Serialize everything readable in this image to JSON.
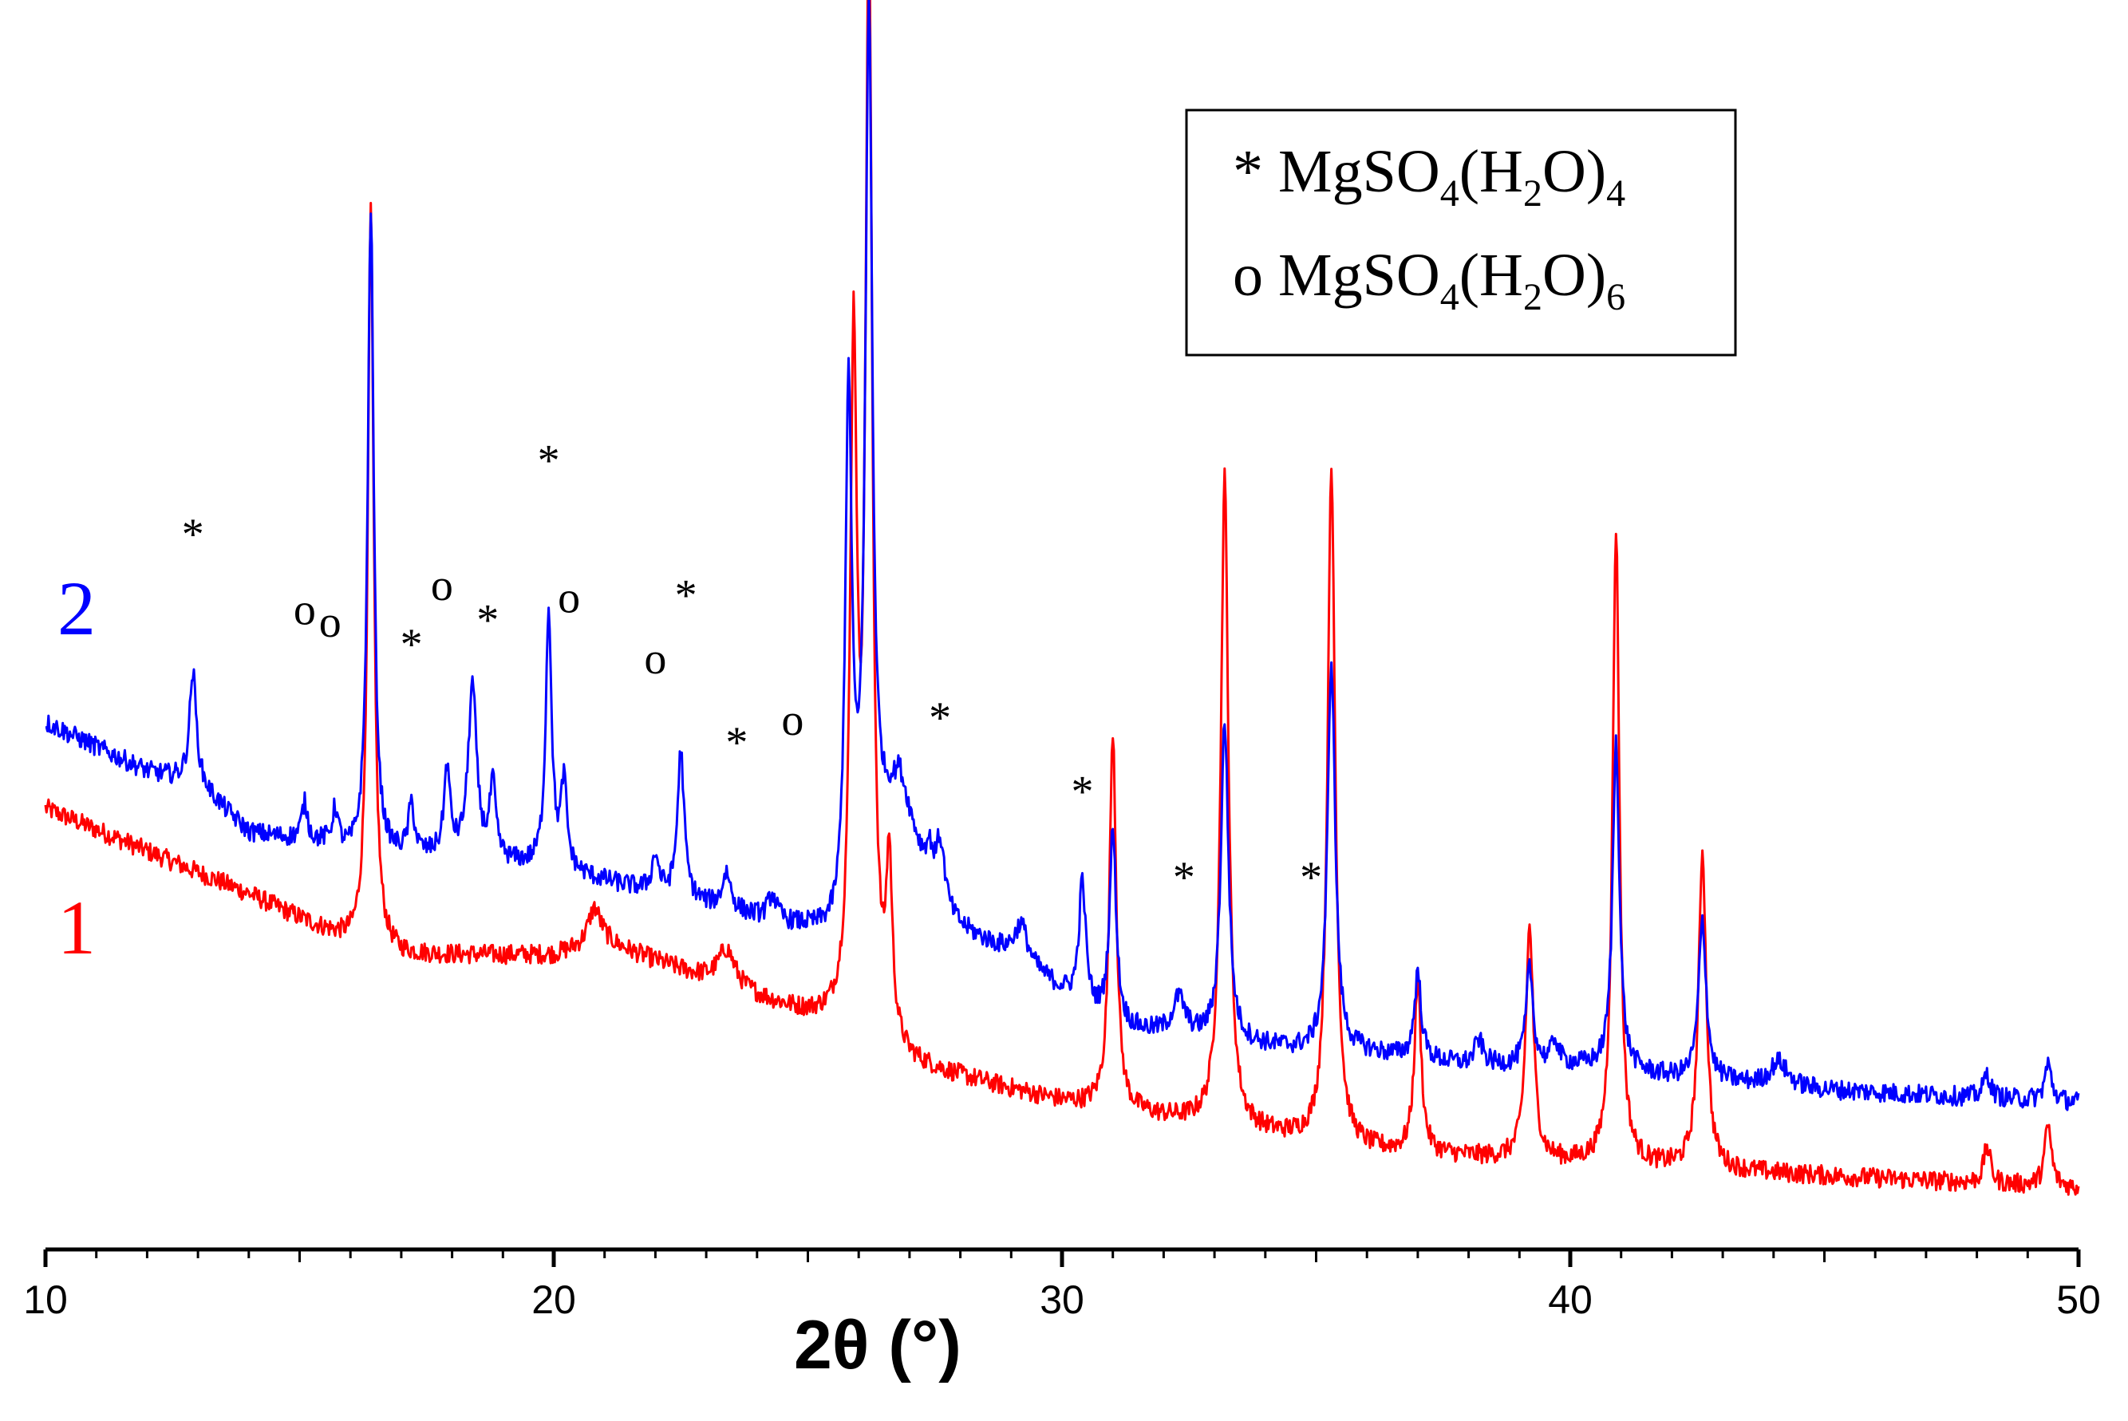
{
  "chart_data": {
    "type": "line",
    "xlabel": "2θ (°)",
    "xlim": [
      10,
      50
    ],
    "ylim": [
      0,
      100
    ],
    "xticks": [
      10,
      20,
      30,
      40,
      50
    ],
    "grid": false,
    "y_axis_shown": false,
    "series": [
      {
        "name": "1",
        "color": "#ff0000",
        "baseline": [
          [
            10,
            36
          ],
          [
            14,
            29
          ],
          [
            16,
            25
          ],
          [
            17,
            24
          ],
          [
            20,
            24
          ],
          [
            21,
            25
          ],
          [
            23,
            22
          ],
          [
            25,
            19
          ],
          [
            25.8,
            18
          ],
          [
            27,
            15
          ],
          [
            30,
            12
          ],
          [
            33,
            10
          ],
          [
            36,
            8
          ],
          [
            40,
            7
          ],
          [
            45,
            6
          ],
          [
            50,
            5
          ]
        ],
        "peaks": [
          [
            16.4,
            60,
            0.07
          ],
          [
            20.8,
            3,
            0.15
          ],
          [
            23.4,
            3,
            0.2
          ],
          [
            25.9,
            54,
            0.08
          ],
          [
            26.2,
            88,
            0.08
          ],
          [
            26.6,
            14,
            0.07
          ],
          [
            31.0,
            31,
            0.08
          ],
          [
            33.2,
            53,
            0.09
          ],
          [
            35.3,
            55,
            0.09
          ],
          [
            37.0,
            14,
            0.08
          ],
          [
            39.2,
            19,
            0.09
          ],
          [
            40.9,
            52,
            0.08
          ],
          [
            42.6,
            26,
            0.09
          ],
          [
            48.2,
            3,
            0.08
          ],
          [
            49.4,
            5,
            0.08
          ]
        ]
      },
      {
        "name": "2",
        "color": "#0000ff",
        "baseline": [
          [
            10,
            43
          ],
          [
            12,
            39
          ],
          [
            13,
            38
          ],
          [
            14,
            34
          ],
          [
            15.5,
            33
          ],
          [
            16,
            32
          ],
          [
            18,
            32
          ],
          [
            20,
            31
          ],
          [
            22,
            29
          ],
          [
            24,
            27
          ],
          [
            25,
            26
          ],
          [
            25.7,
            25
          ],
          [
            26.8,
            38
          ],
          [
            27.5,
            27
          ],
          [
            29,
            24
          ],
          [
            30,
            21
          ],
          [
            31,
            18
          ],
          [
            33,
            17
          ],
          [
            35,
            16
          ],
          [
            36,
            16
          ],
          [
            38,
            15
          ],
          [
            40,
            15
          ],
          [
            42,
            14
          ],
          [
            45,
            13
          ],
          [
            50,
            12
          ]
        ],
        "peaks": [
          [
            12.9,
            9,
            0.08
          ],
          [
            15.1,
            3,
            0.07
          ],
          [
            15.7,
            3,
            0.07
          ],
          [
            16.4,
            53,
            0.07
          ],
          [
            17.2,
            4,
            0.07
          ],
          [
            17.9,
            7,
            0.07
          ],
          [
            18.4,
            14,
            0.1
          ],
          [
            18.8,
            6,
            0.07
          ],
          [
            19.9,
            21,
            0.07
          ],
          [
            20.2,
            7,
            0.07
          ],
          [
            22.0,
            3,
            0.08
          ],
          [
            22.5,
            12,
            0.08
          ],
          [
            23.4,
            3,
            0.1
          ],
          [
            24.3,
            2,
            0.1
          ],
          [
            25.8,
            43,
            0.08
          ],
          [
            26.2,
            70,
            0.08
          ],
          [
            27.4,
            3,
            0.1
          ],
          [
            27.6,
            6,
            0.12
          ],
          [
            29.2,
            3,
            0.15
          ],
          [
            30.4,
            10,
            0.08
          ],
          [
            31.0,
            16,
            0.08
          ],
          [
            32.3,
            3,
            0.15
          ],
          [
            33.2,
            26,
            0.09
          ],
          [
            35.3,
            32,
            0.09
          ],
          [
            37.0,
            7,
            0.08
          ],
          [
            38.2,
            2,
            0.1
          ],
          [
            39.2,
            8,
            0.08
          ],
          [
            39.7,
            2,
            0.08
          ],
          [
            40.9,
            27,
            0.08
          ],
          [
            42.6,
            13,
            0.09
          ],
          [
            44.1,
            2,
            0.2
          ],
          [
            48.2,
            2,
            0.08
          ],
          [
            49.4,
            3,
            0.08
          ]
        ]
      }
    ],
    "annotations": {
      "series_labels": [
        {
          "text": "2",
          "color": "#0000ff"
        },
        {
          "text": "1",
          "color": "#ff0000"
        }
      ],
      "markers": [
        {
          "symbol": "*",
          "x": 12.9,
          "y": 59
        },
        {
          "symbol": "o",
          "x": 15.1,
          "y": 51
        },
        {
          "symbol": "o",
          "x": 15.6,
          "y": 50
        },
        {
          "symbol": "*",
          "x": 17.2,
          "y": 50
        },
        {
          "symbol": "o",
          "x": 17.8,
          "y": 53
        },
        {
          "symbol": "*",
          "x": 18.7,
          "y": 52
        },
        {
          "symbol": "*",
          "x": 19.9,
          "y": 65
        },
        {
          "symbol": "o",
          "x": 20.3,
          "y": 52
        },
        {
          "symbol": "o",
          "x": 22.0,
          "y": 47
        },
        {
          "symbol": "*",
          "x": 22.6,
          "y": 54
        },
        {
          "symbol": "*",
          "x": 23.6,
          "y": 42
        },
        {
          "symbol": "o",
          "x": 24.7,
          "y": 42
        },
        {
          "symbol": "*",
          "x": 27.6,
          "y": 44
        },
        {
          "symbol": "*",
          "x": 30.4,
          "y": 38
        },
        {
          "symbol": "*",
          "x": 32.4,
          "y": 31
        },
        {
          "symbol": "*",
          "x": 34.9,
          "y": 31
        }
      ]
    },
    "legend": {
      "location": "top-right",
      "entries": [
        {
          "symbol": "*",
          "formula_parts": [
            "MgSO",
            "4",
            "(H",
            "2",
            "O)",
            "4"
          ]
        },
        {
          "symbol": "o",
          "formula_parts": [
            "MgSO",
            "4",
            "(H",
            "2",
            "O)",
            "6"
          ]
        }
      ]
    }
  }
}
